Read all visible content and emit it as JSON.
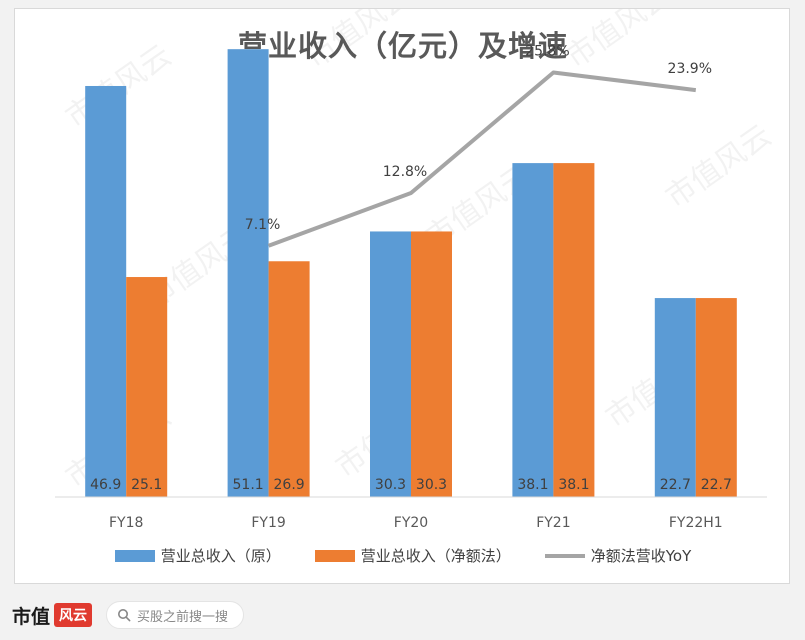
{
  "chart_data": {
    "type": "bar",
    "title": "营业收入（亿元）及增速",
    "categories": [
      "FY18",
      "FY19",
      "FY20",
      "FY21",
      "FY22H1"
    ],
    "series": [
      {
        "name": "营业总收入（原）",
        "type": "bar",
        "color": "#5b9bd5",
        "values": [
          46.9,
          51.1,
          30.3,
          38.1,
          22.7
        ],
        "labels": [
          "46.9",
          "51.1",
          "30.3",
          "38.1",
          "22.7"
        ]
      },
      {
        "name": "营业总收入（净额法）",
        "type": "bar",
        "color": "#ed7d31",
        "values": [
          25.1,
          26.9,
          30.3,
          38.1,
          22.7
        ],
        "labels": [
          "25.1",
          "26.9",
          "30.3",
          "38.1",
          "22.7"
        ]
      },
      {
        "name": "净额法营收YoY",
        "type": "line",
        "color": "#a5a5a5",
        "values": [
          null,
          7.1,
          12.8,
          25.8,
          23.9
        ],
        "labels": [
          "",
          "7.1%",
          "12.8%",
          "25.8%",
          "23.9%"
        ]
      }
    ],
    "ylim": [
      0,
      55
    ],
    "y2lim": [
      -20,
      32
    ],
    "grid": false,
    "legend": "bottom"
  },
  "watermark": "市值风云",
  "footer": {
    "brand_text": "市值",
    "brand_mark": "风云",
    "search_placeholder": "买股之前搜一搜"
  }
}
